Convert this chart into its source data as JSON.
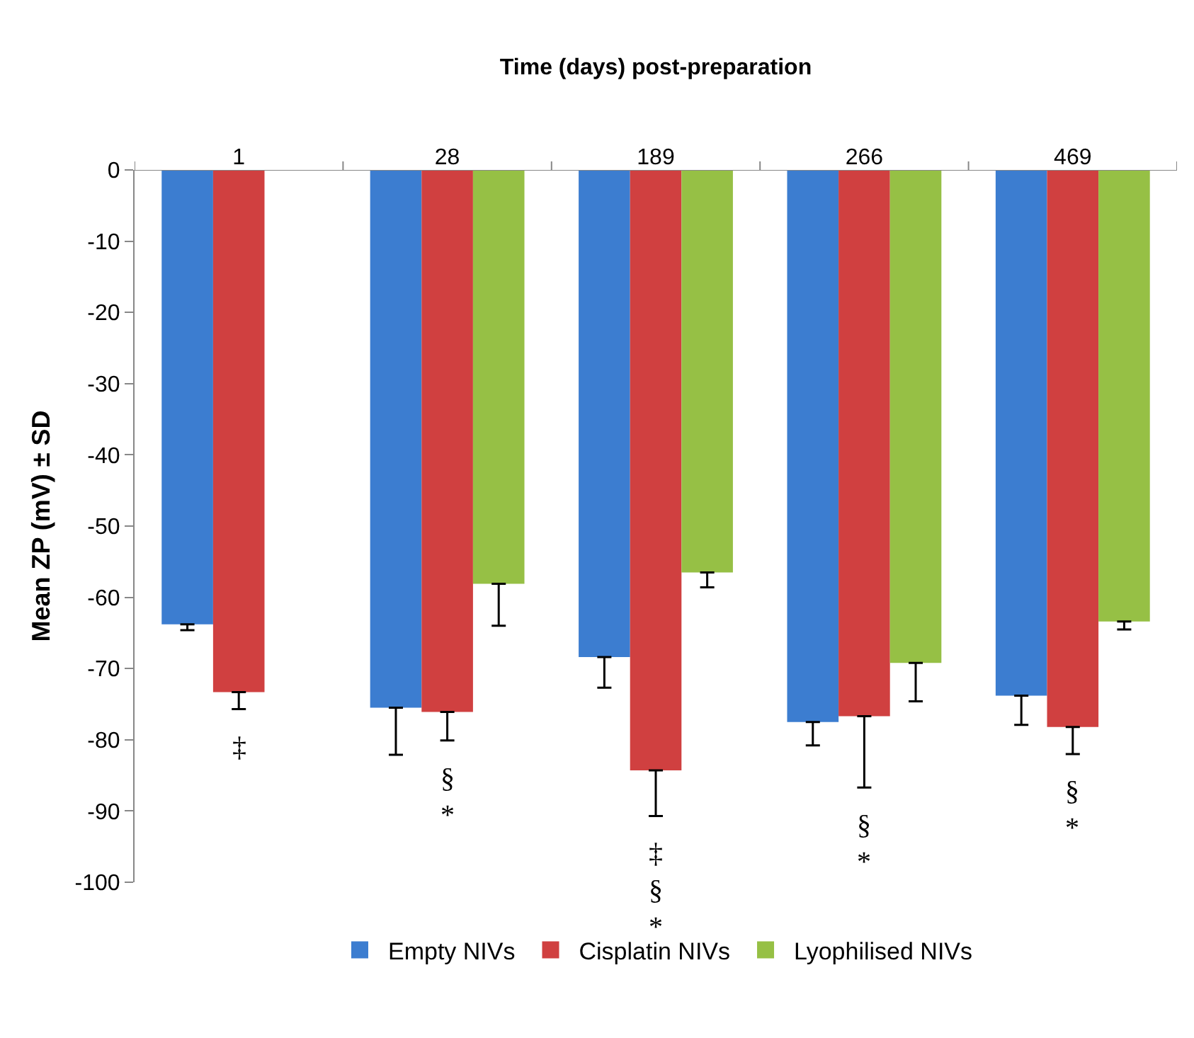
{
  "chart_data": {
    "type": "bar",
    "xlabel": "Time (days) post-preparation",
    "ylabel": "Mean ZP (mV) ± SD",
    "categories": [
      "1",
      "28",
      "189",
      "266",
      "469"
    ],
    "series": [
      {
        "name": "Empty NIVs",
        "color": "#3c7dd0",
        "values": [
          -63.8,
          -75.5,
          -68.4,
          -77.5,
          -73.8
        ],
        "errors": [
          [
            -64.6,
            -63.8
          ],
          [
            -82.1,
            -75.5
          ],
          [
            -72.7,
            -68.4
          ],
          [
            -80.8,
            -77.5
          ],
          [
            -77.9,
            -73.8
          ]
        ]
      },
      {
        "name": "Cisplatin NIVs",
        "color": "#d04040",
        "values": [
          -73.3,
          -76.1,
          -84.3,
          -76.7,
          -78.2
        ],
        "errors": [
          [
            -75.7,
            -73.3
          ],
          [
            -80.1,
            -76.1
          ],
          [
            -90.7,
            -84.3
          ],
          [
            -86.7,
            -76.7
          ],
          [
            -82,
            -78.2
          ]
        ]
      },
      {
        "name": "Lyophilised NIVs",
        "color": "#96c045",
        "values": [
          null,
          -58.1,
          -56.5,
          -69.2,
          -63.4
        ],
        "errors": [
          null,
          [
            -64,
            -58.1
          ],
          [
            -58.6,
            -56.5
          ],
          [
            -74.6,
            -69.2
          ],
          [
            -64.5,
            -63.4
          ]
        ]
      }
    ],
    "ylim": [
      -100,
      0
    ],
    "yticks": [
      0,
      -10,
      -20,
      -30,
      -40,
      -50,
      -60,
      -70,
      -80,
      -90,
      -100
    ],
    "grid": false,
    "legend": "bottom",
    "annotations": [
      {
        "text": "‡",
        "x": "1",
        "y": -73.3
      },
      {
        "text": "§\n*",
        "x": "28",
        "y": -76.1
      },
      {
        "text": "‡\n§\n*",
        "x": "189",
        "y": -84.3
      },
      {
        "text": "§\n*",
        "x": "266",
        "y": -86.7
      },
      {
        "text": "§\n*",
        "x": "469",
        "y": -78.2
      }
    ]
  }
}
